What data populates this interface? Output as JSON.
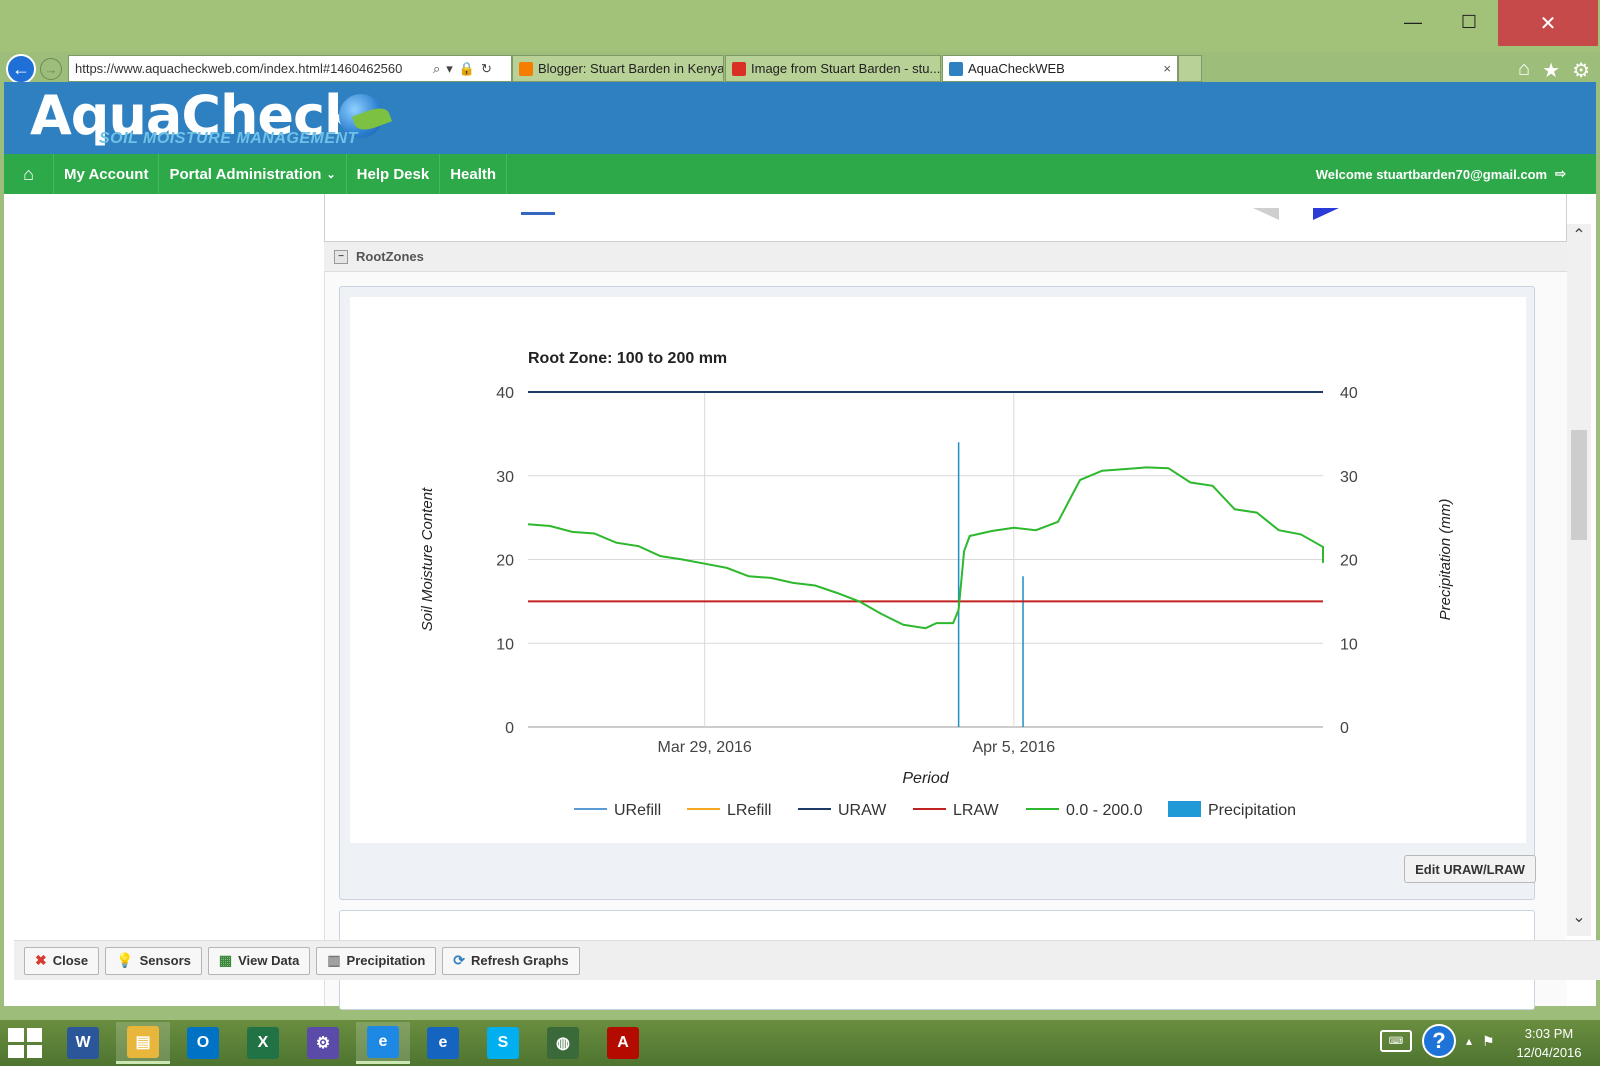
{
  "window": {
    "minimize": "—",
    "maximize": "☐",
    "close": "✕"
  },
  "browser": {
    "url": "https://www.aquacheckweb.com/index.html#1460462560",
    "tabs": [
      {
        "label": "Blogger: Stuart Barden in Kenya...",
        "color": "#f57d00"
      },
      {
        "label": "Image from Stuart Barden - stu...",
        "color": "#d93025"
      },
      {
        "label": "AquaCheckWEB",
        "color": "#2f80c0"
      }
    ],
    "tab_close": "×"
  },
  "header": {
    "logo": "AquaCheck",
    "tagline": "SOIL MOISTURE MANAGEMENT"
  },
  "nav": {
    "home_icon": "⌂",
    "items": [
      "My Account",
      "Portal Administration",
      "Help Desk",
      "Health"
    ],
    "welcome": "Welcome stuartbarden70@gmail.com"
  },
  "panel": {
    "title": "RootZones",
    "collapse_icon": "−",
    "edit_button": "Edit URAW/LRAW"
  },
  "bottom_buttons": [
    {
      "label": "Close",
      "icon": "✖",
      "color": "#d63b2f"
    },
    {
      "label": "Sensors",
      "icon": "💡",
      "color": "#e0b020"
    },
    {
      "label": "View Data",
      "icon": "▦",
      "color": "#3a8a3a"
    },
    {
      "label": "Precipitation",
      "icon": "▥",
      "color": "#777777"
    },
    {
      "label": "Refresh Graphs",
      "icon": "⟳",
      "color": "#2f80c0"
    }
  ],
  "taskbar": {
    "apps": [
      {
        "name": "word",
        "glyph": "W",
        "bg": "#2b579a"
      },
      {
        "name": "file-explorer",
        "glyph": "▤",
        "bg": "#e8b63a"
      },
      {
        "name": "outlook",
        "glyph": "O",
        "bg": "#0072c6"
      },
      {
        "name": "excel",
        "glyph": "X",
        "bg": "#217346"
      },
      {
        "name": "settings",
        "glyph": "⚙",
        "bg": "#5a4ba8"
      },
      {
        "name": "internet-explorer",
        "glyph": "e",
        "bg": "#1e88e5"
      },
      {
        "name": "ie-second",
        "glyph": "e",
        "bg": "#1565c0"
      },
      {
        "name": "skype",
        "glyph": "S",
        "bg": "#00aff0"
      },
      {
        "name": "globe-app",
        "glyph": "◍",
        "bg": "#3a6a3a"
      },
      {
        "name": "acrobat",
        "glyph": "A",
        "bg": "#b30b00"
      }
    ],
    "time": "3:03 PM",
    "date": "12/04/2016"
  },
  "chart_data": {
    "type": "line",
    "title": "Root Zone: 100 to 200 mm",
    "xlabel": "Period",
    "ylabel": "Soil Moisture Content",
    "ylabel_right": "Precipitation (mm)",
    "ylim": [
      0,
      40
    ],
    "ylim_right": [
      0,
      40
    ],
    "yticks": [
      0,
      10,
      20,
      30,
      40
    ],
    "x_range": [
      "2016-03-25",
      "2016-04-12"
    ],
    "x_ticks": [
      {
        "date": "2016-03-29",
        "label": "Mar 29, 2016"
      },
      {
        "date": "2016-04-05",
        "label": "Apr 5, 2016"
      }
    ],
    "grid": true,
    "legend_position": "bottom",
    "legend": [
      "URefill",
      "LRefill",
      "URAW",
      "LRAW",
      "0.0 - 200.0",
      "Precipitation"
    ],
    "series": [
      {
        "name": "URefill",
        "color": "#5b9bd5",
        "points": []
      },
      {
        "name": "LRefill",
        "color": "#f5a623",
        "points": []
      },
      {
        "name": "URAW",
        "color": "#1f3a68",
        "points": [
          [
            "2016-03-25",
            40
          ],
          [
            "2016-04-12",
            40
          ]
        ]
      },
      {
        "name": "LRAW",
        "color": "#c0221f",
        "points": [
          [
            "2016-03-25",
            15
          ],
          [
            "2016-04-12",
            15
          ]
        ]
      },
      {
        "name": "0.0 - 200.0",
        "color": "#2db82d",
        "points": [
          [
            "2016-03-25",
            24.2
          ],
          [
            "2016-03-25T12:00",
            24.0
          ],
          [
            "2016-03-26",
            23.3
          ],
          [
            "2016-03-26T12:00",
            23.1
          ],
          [
            "2016-03-27",
            22.0
          ],
          [
            "2016-03-27T12:00",
            21.6
          ],
          [
            "2016-03-28",
            20.4
          ],
          [
            "2016-03-28T12:00",
            20.0
          ],
          [
            "2016-03-29",
            19.5
          ],
          [
            "2016-03-29T12:00",
            19.0
          ],
          [
            "2016-03-30",
            18.0
          ],
          [
            "2016-03-30T12:00",
            17.8
          ],
          [
            "2016-03-31",
            17.2
          ],
          [
            "2016-03-31T12:00",
            16.9
          ],
          [
            "2016-04-01",
            16.0
          ],
          [
            "2016-04-01T12:00",
            15.0
          ],
          [
            "2016-04-02",
            13.5
          ],
          [
            "2016-04-02T12:00",
            12.2
          ],
          [
            "2016-04-03",
            11.8
          ],
          [
            "2016-04-03T06:00",
            12.4
          ],
          [
            "2016-04-03T15:00",
            12.4
          ],
          [
            "2016-04-03T18:00",
            14.0
          ],
          [
            "2016-04-03T21:00",
            21.0
          ],
          [
            "2016-04-04",
            22.8
          ],
          [
            "2016-04-04T12:00",
            23.4
          ],
          [
            "2016-04-05",
            23.8
          ],
          [
            "2016-04-05T12:00",
            23.5
          ],
          [
            "2016-04-06",
            24.5
          ],
          [
            "2016-04-06T06:00",
            27.0
          ],
          [
            "2016-04-06T12:00",
            29.5
          ],
          [
            "2016-04-07",
            30.6
          ],
          [
            "2016-04-07T12:00",
            30.8
          ],
          [
            "2016-04-08",
            31.0
          ],
          [
            "2016-04-08T12:00",
            30.9
          ],
          [
            "2016-04-09",
            29.2
          ],
          [
            "2016-04-09T12:00",
            28.8
          ],
          [
            "2016-04-10",
            26.0
          ],
          [
            "2016-04-10T12:00",
            25.6
          ],
          [
            "2016-04-11",
            23.5
          ],
          [
            "2016-04-11T12:00",
            23.0
          ],
          [
            "2016-04-12",
            21.5
          ],
          [
            "2016-04-12",
            19.6
          ]
        ]
      }
    ],
    "precipitation": [
      {
        "date": "2016-04-03T18:00",
        "value": 34
      },
      {
        "date": "2016-04-05T05:00",
        "value": 18
      }
    ]
  }
}
